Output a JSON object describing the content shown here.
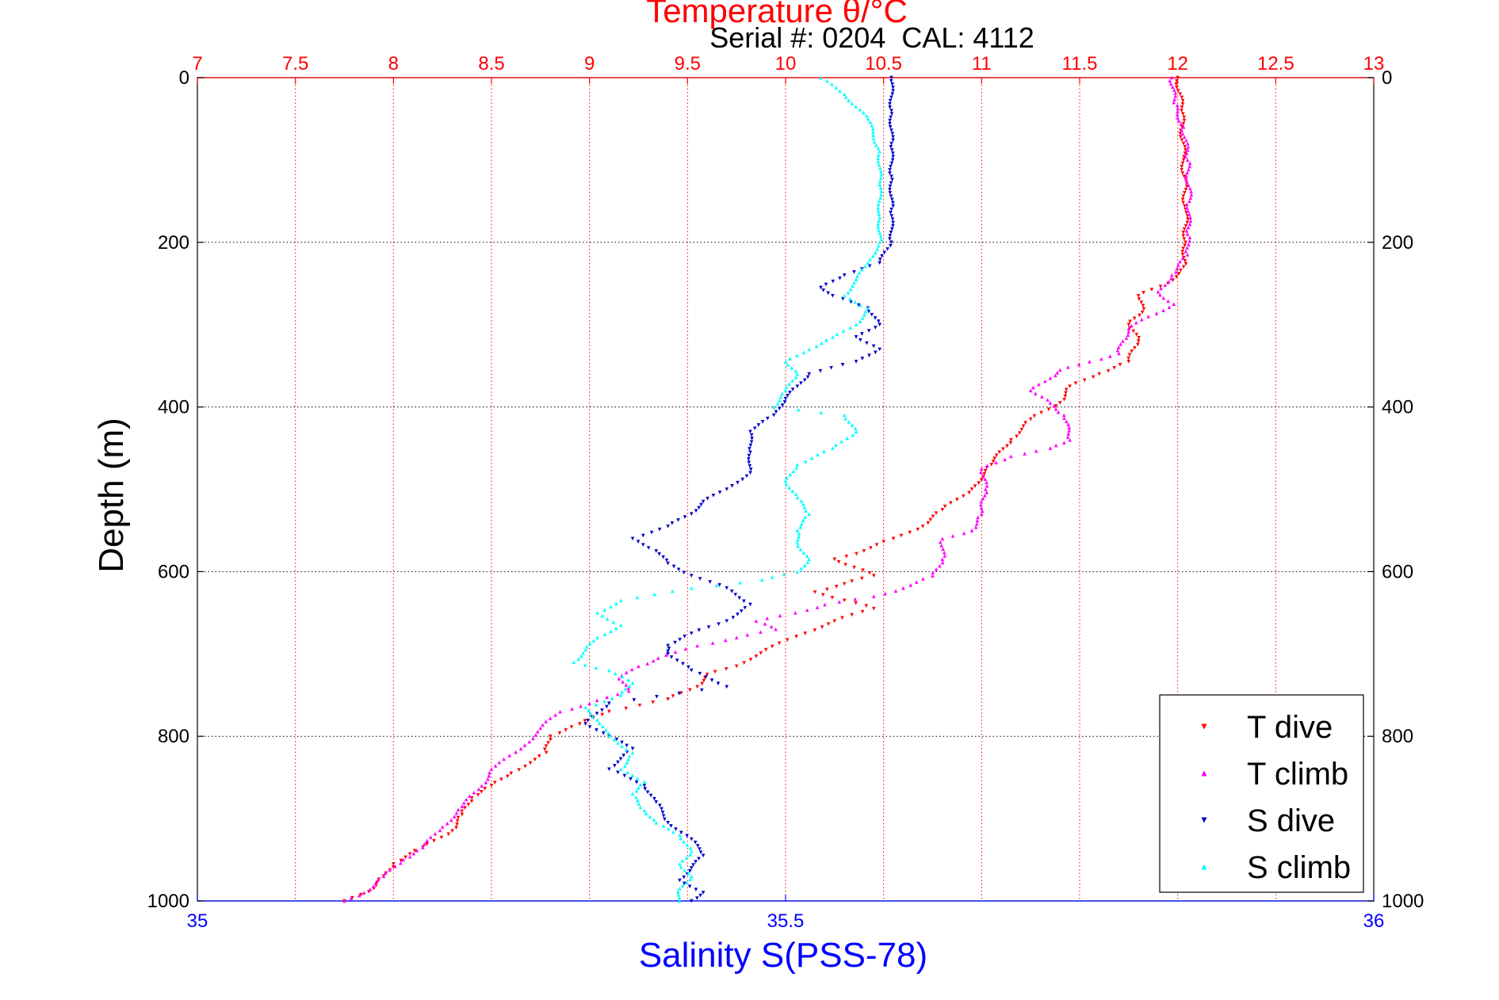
{
  "chart_data": {
    "type": "scatter",
    "title": "Temperature θ/°C",
    "subtitle": "Serial #: 0204  CAL: 4112",
    "ylabel": "Depth (m)",
    "xlabel_bottom": "Salinity S(PSS-78)",
    "top_axis": {
      "label": "Temperature θ/°C",
      "range": [
        7,
        13
      ],
      "ticks": [
        "7",
        "7.5",
        "8",
        "8.5",
        "9",
        "9.5",
        "10",
        "10.5",
        "11",
        "11.5",
        "12",
        "12.5",
        "13"
      ]
    },
    "bottom_axis": {
      "label": "Salinity S(PSS-78)",
      "range": [
        35,
        36
      ],
      "ticks": [
        "35",
        "35.5",
        "36"
      ]
    },
    "y_axis": {
      "range": [
        0,
        1000
      ],
      "reversed": true,
      "ticks": [
        "0",
        "200",
        "400",
        "600",
        "800",
        "1000"
      ]
    },
    "grid": true,
    "legend_position": "bottom-right",
    "colors": {
      "temperature_axis": "#ff0000",
      "salinity_axis": "#0000ff",
      "T_dive": "#ff0000",
      "T_climb": "#ff00ff",
      "S_dive": "#0000cc",
      "S_climb": "#00ffff"
    },
    "series": [
      {
        "name": "T dive",
        "axis": "temperature",
        "marker": "triangle-down",
        "points": [
          [
            12.0,
            0
          ],
          [
            12.02,
            40
          ],
          [
            12.03,
            100
          ],
          [
            12.04,
            160
          ],
          [
            12.04,
            200
          ],
          [
            12.03,
            230
          ],
          [
            11.95,
            250
          ],
          [
            11.8,
            265
          ],
          [
            11.82,
            285
          ],
          [
            11.75,
            300
          ],
          [
            11.8,
            320
          ],
          [
            11.75,
            345
          ],
          [
            11.6,
            360
          ],
          [
            11.45,
            375
          ],
          [
            11.4,
            395
          ],
          [
            11.25,
            415
          ],
          [
            11.15,
            440
          ],
          [
            11.05,
            470
          ],
          [
            10.95,
            500
          ],
          [
            10.8,
            525
          ],
          [
            10.7,
            545
          ],
          [
            10.55,
            560
          ],
          [
            10.4,
            575
          ],
          [
            10.25,
            585
          ],
          [
            10.35,
            595
          ],
          [
            10.45,
            605
          ],
          [
            10.3,
            615
          ],
          [
            10.15,
            625
          ],
          [
            10.3,
            635
          ],
          [
            10.45,
            645
          ],
          [
            10.25,
            660
          ],
          [
            10.1,
            675
          ],
          [
            9.9,
            695
          ],
          [
            9.75,
            715
          ],
          [
            9.6,
            725
          ],
          [
            9.55,
            740
          ],
          [
            9.4,
            755
          ],
          [
            9.1,
            770
          ],
          [
            8.95,
            785
          ],
          [
            8.8,
            800
          ],
          [
            8.78,
            820
          ],
          [
            8.6,
            845
          ],
          [
            8.5,
            860
          ],
          [
            8.4,
            875
          ],
          [
            8.35,
            895
          ],
          [
            8.3,
            915
          ],
          [
            8.15,
            935
          ],
          [
            8.0,
            955
          ],
          [
            7.95,
            970
          ],
          [
            7.9,
            985
          ],
          [
            7.75,
            1000
          ]
        ]
      },
      {
        "name": "T climb",
        "axis": "temperature",
        "marker": "triangle-up",
        "points": [
          [
            11.97,
            0
          ],
          [
            11.98,
            30
          ],
          [
            12.03,
            60
          ],
          [
            12.05,
            100
          ],
          [
            12.06,
            150
          ],
          [
            12.05,
            190
          ],
          [
            12.05,
            215
          ],
          [
            11.97,
            240
          ],
          [
            11.9,
            260
          ],
          [
            11.98,
            275
          ],
          [
            11.85,
            290
          ],
          [
            11.75,
            305
          ],
          [
            11.72,
            320
          ],
          [
            11.7,
            335
          ],
          [
            11.55,
            345
          ],
          [
            11.4,
            355
          ],
          [
            11.35,
            365
          ],
          [
            11.25,
            380
          ],
          [
            11.35,
            395
          ],
          [
            11.42,
            410
          ],
          [
            11.45,
            440
          ],
          [
            11.35,
            450
          ],
          [
            11.15,
            460
          ],
          [
            11.0,
            475
          ],
          [
            11.02,
            500
          ],
          [
            11.0,
            530
          ],
          [
            10.95,
            550
          ],
          [
            10.8,
            560
          ],
          [
            10.8,
            585
          ],
          [
            10.75,
            605
          ],
          [
            10.6,
            620
          ],
          [
            10.45,
            630
          ],
          [
            10.2,
            640
          ],
          [
            10.05,
            650
          ],
          [
            9.85,
            660
          ],
          [
            9.95,
            670
          ],
          [
            9.75,
            680
          ],
          [
            9.55,
            690
          ],
          [
            9.35,
            705
          ],
          [
            9.25,
            715
          ],
          [
            9.15,
            730
          ],
          [
            9.2,
            745
          ],
          [
            9.0,
            760
          ],
          [
            8.85,
            770
          ],
          [
            8.75,
            790
          ],
          [
            8.65,
            815
          ],
          [
            8.5,
            840
          ],
          [
            8.45,
            860
          ],
          [
            8.35,
            885
          ],
          [
            8.25,
            910
          ],
          [
            8.15,
            935
          ],
          [
            8.05,
            950
          ],
          [
            7.95,
            970
          ],
          [
            7.85,
            990
          ],
          [
            7.75,
            1000
          ]
        ]
      },
      {
        "name": "S dive",
        "axis": "salinity",
        "marker": "triangle-down",
        "points": [
          [
            35.59,
            0
          ],
          [
            35.59,
            40
          ],
          [
            35.59,
            80
          ],
          [
            35.59,
            120
          ],
          [
            35.59,
            160
          ],
          [
            35.59,
            200
          ],
          [
            35.58,
            225
          ],
          [
            35.55,
            240
          ],
          [
            35.53,
            255
          ],
          [
            35.54,
            265
          ],
          [
            35.57,
            280
          ],
          [
            35.58,
            300
          ],
          [
            35.56,
            315
          ],
          [
            35.58,
            330
          ],
          [
            35.56,
            345
          ],
          [
            35.52,
            360
          ],
          [
            35.51,
            375
          ],
          [
            35.5,
            390
          ],
          [
            35.49,
            410
          ],
          [
            35.47,
            430
          ],
          [
            35.47,
            455
          ],
          [
            35.47,
            480
          ],
          [
            35.45,
            500
          ],
          [
            35.43,
            515
          ],
          [
            35.42,
            530
          ],
          [
            35.4,
            545
          ],
          [
            35.37,
            560
          ],
          [
            35.39,
            575
          ],
          [
            35.4,
            590
          ],
          [
            35.42,
            605
          ],
          [
            35.45,
            620
          ],
          [
            35.47,
            640
          ],
          [
            35.45,
            660
          ],
          [
            35.42,
            675
          ],
          [
            35.4,
            690
          ],
          [
            35.4,
            700
          ],
          [
            35.42,
            720
          ],
          [
            35.45,
            740
          ],
          [
            35.35,
            760
          ],
          [
            35.33,
            785
          ],
          [
            35.35,
            800
          ],
          [
            35.37,
            815
          ],
          [
            35.35,
            840
          ],
          [
            35.38,
            860
          ],
          [
            35.39,
            880
          ],
          [
            35.4,
            905
          ],
          [
            35.42,
            925
          ],
          [
            35.43,
            945
          ],
          [
            35.42,
            960
          ],
          [
            35.41,
            975
          ],
          [
            35.43,
            990
          ],
          [
            35.42,
            1000
          ]
        ]
      },
      {
        "name": "S climb",
        "axis": "salinity",
        "marker": "triangle-up",
        "points": [
          [
            35.53,
            0
          ],
          [
            35.55,
            20
          ],
          [
            35.57,
            50
          ],
          [
            35.58,
            90
          ],
          [
            35.58,
            130
          ],
          [
            35.58,
            170
          ],
          [
            35.58,
            200
          ],
          [
            35.57,
            225
          ],
          [
            35.56,
            245
          ],
          [
            35.55,
            265
          ],
          [
            35.57,
            280
          ],
          [
            35.56,
            300
          ],
          [
            35.54,
            315
          ],
          [
            35.52,
            330
          ],
          [
            35.5,
            345
          ],
          [
            35.51,
            360
          ],
          [
            35.5,
            380
          ],
          [
            35.49,
            400
          ],
          [
            35.55,
            410
          ],
          [
            35.56,
            430
          ],
          [
            35.54,
            450
          ],
          [
            35.51,
            470
          ],
          [
            35.5,
            490
          ],
          [
            35.51,
            510
          ],
          [
            35.52,
            530
          ],
          [
            35.51,
            550
          ],
          [
            35.51,
            565
          ],
          [
            35.52,
            585
          ],
          [
            35.51,
            600
          ],
          [
            35.48,
            610
          ],
          [
            35.42,
            620
          ],
          [
            35.36,
            635
          ],
          [
            35.34,
            650
          ],
          [
            35.36,
            665
          ],
          [
            35.34,
            680
          ],
          [
            35.33,
            695
          ],
          [
            35.32,
            710
          ],
          [
            35.35,
            720
          ],
          [
            35.37,
            735
          ],
          [
            35.36,
            750
          ],
          [
            35.33,
            765
          ],
          [
            35.34,
            780
          ],
          [
            35.35,
            800
          ],
          [
            35.37,
            820
          ],
          [
            35.36,
            840
          ],
          [
            35.38,
            855
          ],
          [
            35.37,
            870
          ],
          [
            35.38,
            890
          ],
          [
            35.39,
            905
          ],
          [
            35.41,
            920
          ],
          [
            35.42,
            940
          ],
          [
            35.41,
            955
          ],
          [
            35.42,
            970
          ],
          [
            35.41,
            985
          ],
          [
            35.41,
            1000
          ]
        ]
      }
    ]
  }
}
